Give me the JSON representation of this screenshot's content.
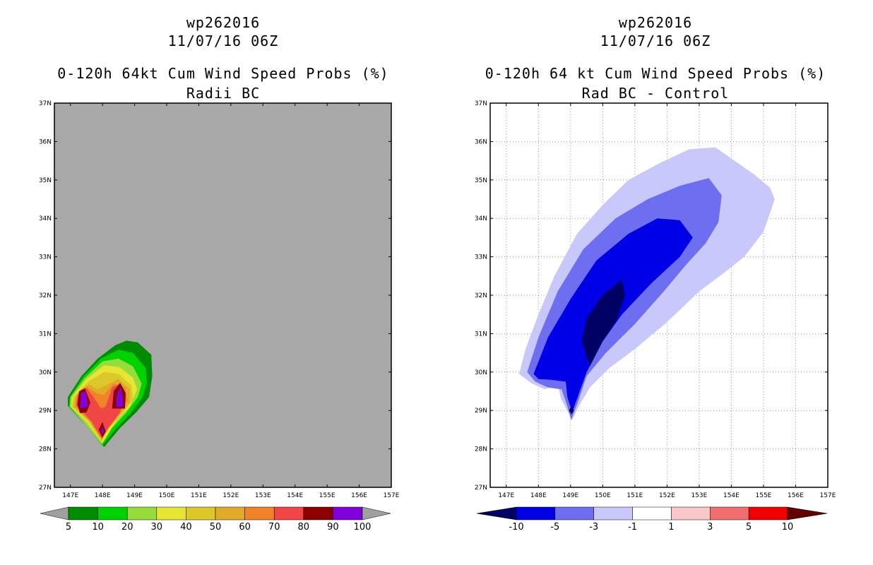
{
  "chart_data": [
    {
      "type": "contour-map",
      "storm_id": "wp262016",
      "datetime": "11/07/16 06Z",
      "title": "0-120h 64kt Cum Wind Speed Probs (%)",
      "subtitle": "Radii BC",
      "xlim": [
        146.5,
        157
      ],
      "ylim": [
        27,
        37
      ],
      "x_ticks": [
        "147E",
        "148E",
        "149E",
        "150E",
        "151E",
        "152E",
        "153E",
        "154E",
        "155E",
        "156E",
        "157E"
      ],
      "y_ticks": [
        "27N",
        "28N",
        "29N",
        "30N",
        "31N",
        "32N",
        "33N",
        "34N",
        "35N",
        "36N",
        "37N"
      ],
      "background": "#a8a8a8",
      "colorbar": {
        "levels": [
          "5",
          "10",
          "20",
          "30",
          "40",
          "50",
          "60",
          "70",
          "80",
          "90",
          "100"
        ],
        "colors": [
          "#008c00",
          "#00d200",
          "#96dc3c",
          "#e6e632",
          "#dcc828",
          "#e1aa28",
          "#f08228",
          "#f04646",
          "#8c0000",
          "#8200dc"
        ],
        "extend_colors": [
          "#a0a0a0",
          "#a0a0a0"
        ]
      },
      "contours": [
        {
          "level": 5,
          "color": "#008c00",
          "points": [
            [
              146.92,
              29.12
            ],
            [
              146.92,
              29.35
            ],
            [
              147.35,
              29.9
            ],
            [
              147.85,
              30.35
            ],
            [
              148.4,
              30.7
            ],
            [
              148.75,
              30.82
            ],
            [
              149.1,
              30.77
            ],
            [
              149.52,
              30.45
            ],
            [
              149.55,
              29.9
            ],
            [
              149.45,
              29.35
            ],
            [
              149.05,
              28.95
            ],
            [
              148.55,
              28.55
            ],
            [
              148.05,
              28.05
            ],
            [
              147.5,
              28.6
            ]
          ]
        },
        {
          "level": 10,
          "color": "#00d200",
          "points": [
            [
              146.95,
              29.1
            ],
            [
              146.98,
              29.35
            ],
            [
              147.4,
              29.88
            ],
            [
              147.95,
              30.35
            ],
            [
              148.5,
              30.58
            ],
            [
              148.95,
              30.5
            ],
            [
              149.35,
              30.1
            ],
            [
              149.38,
              29.7
            ],
            [
              149.25,
              29.35
            ],
            [
              148.9,
              28.95
            ],
            [
              148.4,
              28.5
            ],
            [
              148.0,
              28.08
            ],
            [
              147.45,
              28.65
            ]
          ]
        },
        {
          "level": 20,
          "color": "#96dc3c",
          "points": [
            [
              146.98,
              29.1
            ],
            [
              147.0,
              29.35
            ],
            [
              147.45,
              29.85
            ],
            [
              148.0,
              30.28
            ],
            [
              148.5,
              30.35
            ],
            [
              148.95,
              30.15
            ],
            [
              149.22,
              29.7
            ],
            [
              149.1,
              29.35
            ],
            [
              148.75,
              28.95
            ],
            [
              148.3,
              28.55
            ],
            [
              147.98,
              28.12
            ],
            [
              147.45,
              28.65
            ]
          ]
        },
        {
          "level": 30,
          "color": "#e6e632",
          "points": [
            [
              147.02,
              29.1
            ],
            [
              147.05,
              29.35
            ],
            [
              147.5,
              29.82
            ],
            [
              148.05,
              30.18
            ],
            [
              148.55,
              30.12
            ],
            [
              148.95,
              29.85
            ],
            [
              149.08,
              29.55
            ],
            [
              148.85,
              29.1
            ],
            [
              148.45,
              28.75
            ],
            [
              148.0,
              28.15
            ],
            [
              147.5,
              28.7
            ]
          ]
        },
        {
          "level": 40,
          "color": "#dcc828",
          "points": [
            [
              147.05,
              29.1
            ],
            [
              147.1,
              29.35
            ],
            [
              147.55,
              29.75
            ],
            [
              148.05,
              30.0
            ],
            [
              148.5,
              29.95
            ],
            [
              148.9,
              29.65
            ],
            [
              148.95,
              29.3
            ],
            [
              148.6,
              28.9
            ],
            [
              148.2,
              28.55
            ],
            [
              147.98,
              28.2
            ],
            [
              147.55,
              28.72
            ]
          ]
        },
        {
          "level": 50,
          "color": "#e1aa28",
          "points": [
            [
              147.1,
              29.1
            ],
            [
              147.15,
              29.35
            ],
            [
              147.55,
              29.68
            ],
            [
              147.85,
              29.55
            ],
            [
              148.1,
              29.65
            ],
            [
              148.5,
              29.82
            ],
            [
              148.85,
              29.55
            ],
            [
              148.85,
              29.2
            ],
            [
              148.5,
              28.85
            ],
            [
              148.15,
              28.5
            ],
            [
              147.98,
              28.22
            ],
            [
              147.6,
              28.72
            ]
          ]
        },
        {
          "level": 60,
          "color": "#f08228",
          "points": [
            [
              147.15,
              29.1
            ],
            [
              147.2,
              29.4
            ],
            [
              147.5,
              29.62
            ],
            [
              147.8,
              29.45
            ],
            [
              148.05,
              29.4
            ],
            [
              148.35,
              29.7
            ],
            [
              148.7,
              29.6
            ],
            [
              148.78,
              29.25
            ],
            [
              148.45,
              28.85
            ],
            [
              148.1,
              28.5
            ],
            [
              147.98,
              28.25
            ],
            [
              147.62,
              28.72
            ]
          ]
        },
        {
          "level": 70,
          "color": "#f04646",
          "points": [
            [
              147.18,
              29.15
            ],
            [
              147.25,
              29.45
            ],
            [
              147.5,
              29.58
            ],
            [
              147.72,
              29.35
            ],
            [
              147.95,
              29.05
            ],
            [
              148.1,
              29.1
            ],
            [
              148.3,
              29.6
            ],
            [
              148.55,
              29.7
            ],
            [
              148.72,
              29.35
            ],
            [
              148.55,
              28.95
            ],
            [
              148.15,
              28.5
            ],
            [
              147.98,
              28.28
            ],
            [
              147.65,
              28.72
            ]
          ]
        },
        {
          "level": 80,
          "color": "#8c0000",
          "points": [
            [
              147.22,
              29.15
            ],
            [
              147.27,
              29.5
            ],
            [
              147.45,
              29.58
            ],
            [
              147.62,
              29.2
            ],
            [
              147.5,
              28.95
            ],
            [
              147.3,
              28.93
            ]
          ]
        },
        {
          "level": 80,
          "color": "#8c0000",
          "points": [
            [
              148.3,
              29.05
            ],
            [
              148.35,
              29.5
            ],
            [
              148.55,
              29.72
            ],
            [
              148.72,
              29.45
            ],
            [
              148.7,
              29.05
            ]
          ]
        },
        {
          "level": 80,
          "color": "#8c0000",
          "points": [
            [
              147.88,
              28.5
            ],
            [
              148.0,
              28.7
            ],
            [
              148.1,
              28.45
            ],
            [
              148.0,
              28.3
            ]
          ]
        },
        {
          "level": 90,
          "color": "#8200dc",
          "points": [
            [
              147.3,
              29.05
            ],
            [
              147.33,
              29.45
            ],
            [
              147.48,
              29.5
            ],
            [
              147.55,
              29.1
            ]
          ]
        },
        {
          "level": 90,
          "color": "#8200dc",
          "points": [
            [
              148.42,
              29.1
            ],
            [
              148.45,
              29.45
            ],
            [
              148.58,
              29.6
            ],
            [
              148.65,
              29.1
            ]
          ]
        },
        {
          "level": 90,
          "color": "#8200dc",
          "points": [
            [
              147.95,
              28.45
            ],
            [
              148.0,
              28.58
            ],
            [
              148.05,
              28.45
            ],
            [
              148.0,
              28.38
            ]
          ]
        }
      ]
    },
    {
      "type": "contour-map",
      "storm_id": "wp262016",
      "datetime": "11/07/16 06Z",
      "title": "0-120h 64 kt Cum Wind Speed Probs (%)",
      "subtitle": "Rad BC - Control",
      "xlim": [
        146.5,
        157
      ],
      "ylim": [
        27,
        37
      ],
      "x_ticks": [
        "147E",
        "148E",
        "149E",
        "150E",
        "151E",
        "152E",
        "153E",
        "154E",
        "155E",
        "156E",
        "157E"
      ],
      "y_ticks": [
        "27N",
        "28N",
        "29N",
        "30N",
        "31N",
        "32N",
        "33N",
        "34N",
        "35N",
        "36N",
        "37N"
      ],
      "background": "#ffffff",
      "colorbar": {
        "levels": [
          "-10",
          "-5",
          "-3",
          "-1",
          "1",
          "3",
          "5",
          "10"
        ],
        "colors": [
          "#0000e6",
          "#6e6ef0",
          "#c8c8fa",
          "#ffffff",
          "#fac8c8",
          "#f06e6e",
          "#f00000"
        ],
        "extend_colors": [
          "#000064",
          "#640000"
        ]
      },
      "contours": [
        {
          "level": -1,
          "color": "#c8c8fa",
          "points": [
            [
              147.4,
              29.95
            ],
            [
              147.6,
              30.6
            ],
            [
              148.0,
              31.5
            ],
            [
              148.5,
              32.5
            ],
            [
              149.2,
              33.6
            ],
            [
              150.0,
              34.35
            ],
            [
              150.8,
              35.0
            ],
            [
              151.8,
              35.45
            ],
            [
              152.7,
              35.8
            ],
            [
              153.5,
              35.85
            ],
            [
              154.1,
              35.5
            ],
            [
              154.7,
              35.15
            ],
            [
              155.2,
              34.8
            ],
            [
              155.35,
              34.5
            ],
            [
              155.0,
              33.65
            ],
            [
              154.4,
              33.0
            ],
            [
              153.8,
              32.6
            ],
            [
              153.0,
              32.1
            ],
            [
              152.0,
              31.3
            ],
            [
              151.0,
              30.6
            ],
            [
              150.2,
              30.1
            ],
            [
              149.6,
              29.6
            ],
            [
              149.25,
              29.1
            ],
            [
              149.05,
              28.75
            ],
            [
              148.7,
              29.3
            ],
            [
              148.6,
              29.7
            ],
            [
              148.2,
              29.55
            ],
            [
              147.8,
              29.7
            ]
          ]
        },
        {
          "level": -3,
          "color": "#6e6ef0",
          "points": [
            [
              147.65,
              30.0
            ],
            [
              148.0,
              30.9
            ],
            [
              148.6,
              32.1
            ],
            [
              149.4,
              33.2
            ],
            [
              150.4,
              34.0
            ],
            [
              151.4,
              34.5
            ],
            [
              152.4,
              34.85
            ],
            [
              153.3,
              35.05
            ],
            [
              153.7,
              34.6
            ],
            [
              153.6,
              33.9
            ],
            [
              153.2,
              33.35
            ],
            [
              152.6,
              32.8
            ],
            [
              151.9,
              32.1
            ],
            [
              151.0,
              31.25
            ],
            [
              150.1,
              30.5
            ],
            [
              149.5,
              29.9
            ],
            [
              149.2,
              29.15
            ],
            [
              149.02,
              28.75
            ],
            [
              148.9,
              29.1
            ],
            [
              148.72,
              29.55
            ],
            [
              148.3,
              29.6
            ],
            [
              147.9,
              29.75
            ]
          ]
        },
        {
          "level": -5,
          "color": "#0000e6",
          "points": [
            [
              147.85,
              29.95
            ],
            [
              148.3,
              30.9
            ],
            [
              149.0,
              31.9
            ],
            [
              149.8,
              32.9
            ],
            [
              150.8,
              33.6
            ],
            [
              151.7,
              34.0
            ],
            [
              152.4,
              33.95
            ],
            [
              152.8,
              33.5
            ],
            [
              152.4,
              33.0
            ],
            [
              151.5,
              32.3
            ],
            [
              150.6,
              31.5
            ],
            [
              150.0,
              30.8
            ],
            [
              149.5,
              30.0
            ],
            [
              149.2,
              29.3
            ],
            [
              149.05,
              28.95
            ],
            [
              148.9,
              29.35
            ],
            [
              148.85,
              29.75
            ],
            [
              148.4,
              29.8
            ],
            [
              148.0,
              29.82
            ]
          ]
        },
        {
          "level": -10,
          "color": "#000064",
          "points": [
            [
              149.35,
              30.8
            ],
            [
              149.5,
              31.4
            ],
            [
              150.0,
              32.0
            ],
            [
              150.6,
              32.4
            ],
            [
              150.7,
              32.0
            ],
            [
              150.4,
              31.3
            ],
            [
              150.0,
              30.8
            ],
            [
              149.6,
              30.15
            ]
          ]
        },
        {
          "level": -10,
          "color": "#000064",
          "points": [
            [
              148.95,
              29.0
            ],
            [
              149.03,
              29.12
            ],
            [
              149.1,
              29.0
            ],
            [
              149.03,
              28.9
            ]
          ]
        }
      ]
    }
  ],
  "panels": [
    {
      "title1": "wp262016",
      "title2": "11/07/16 06Z",
      "title3": "0-120h 64kt Cum Wind Speed Probs (%)",
      "title4": "Radii BC"
    },
    {
      "title1": "wp262016",
      "title2": "11/07/16 06Z",
      "title3": "0-120h 64 kt Cum Wind Speed Probs (%)",
      "title4": "Rad BC - Control"
    }
  ]
}
